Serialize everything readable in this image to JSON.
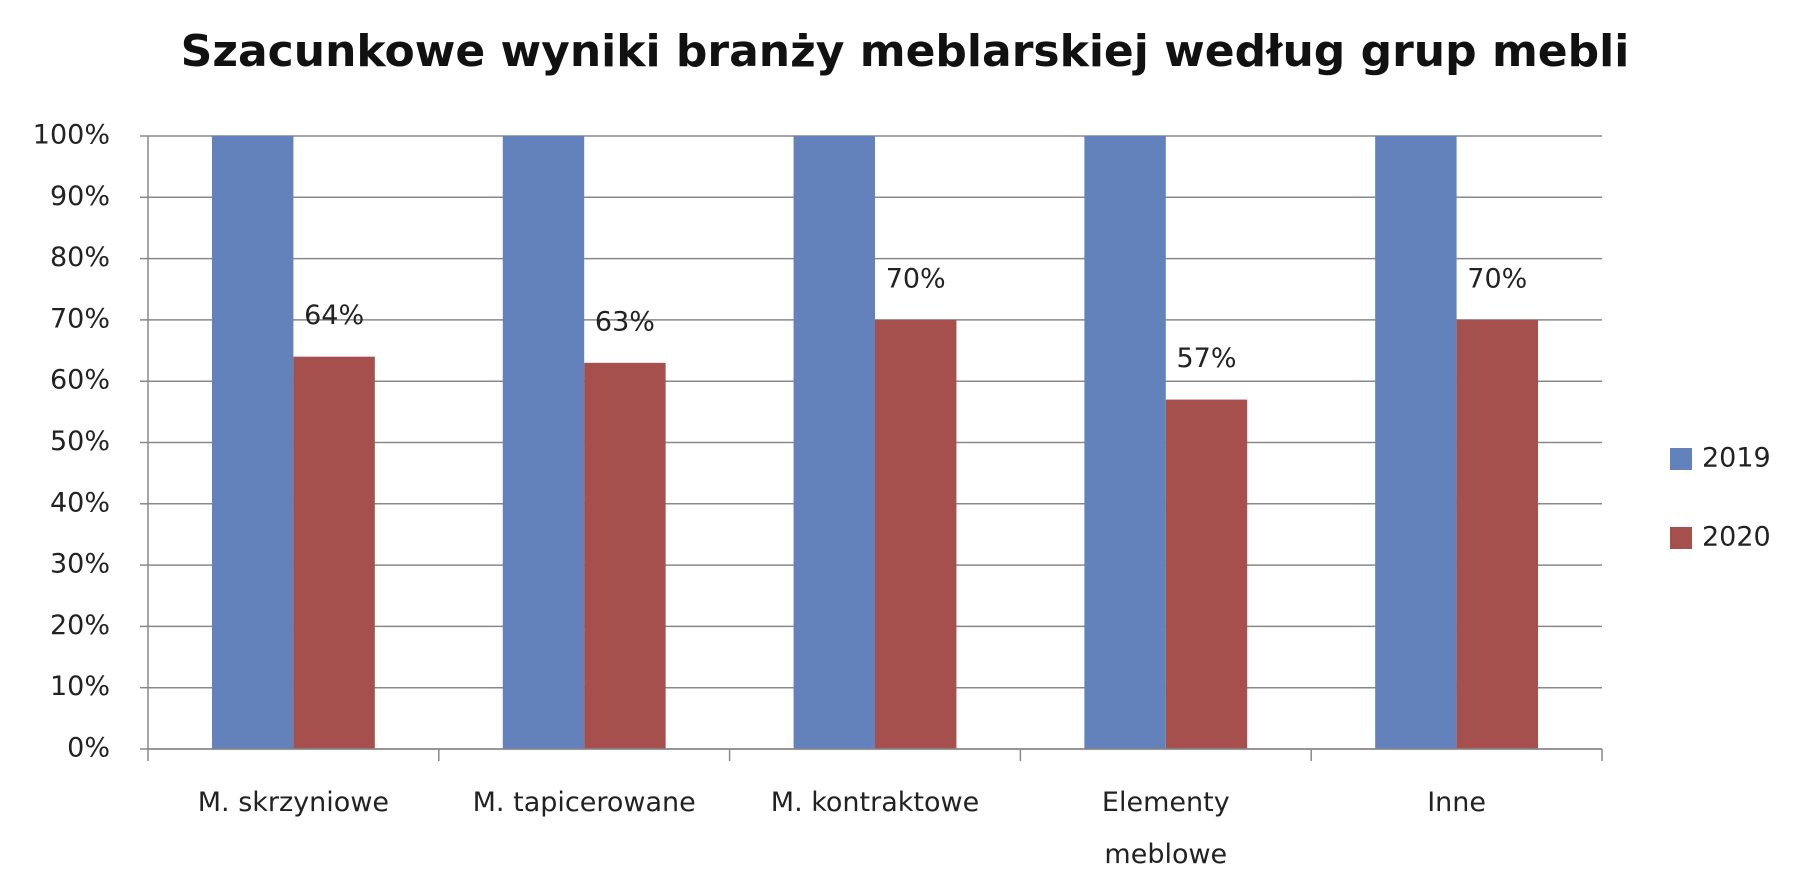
{
  "chart_data": {
    "type": "bar",
    "title": "Szacunkowe wyniki branży meblarskiej według grup mebli",
    "categories": [
      "M. skrzyniowe",
      "M. tapicerowane",
      "M. kontraktowe",
      "Elementy meblowe",
      "Inne"
    ],
    "series": [
      {
        "name": "2019",
        "color": "#6381bb",
        "values": [
          100,
          100,
          100,
          100,
          100
        ]
      },
      {
        "name": "2020",
        "color": "#a6504e",
        "values": [
          64,
          63,
          70,
          57,
          70
        ],
        "value_labels": [
          "64%",
          "63%",
          "70%",
          "57%",
          "70%"
        ]
      }
    ],
    "ylim": [
      0,
      100
    ],
    "yticks": [
      {
        "value": 0,
        "label": "0%"
      },
      {
        "value": 10,
        "label": "10%"
      },
      {
        "value": 20,
        "label": "20%"
      },
      {
        "value": 30,
        "label": "30%"
      },
      {
        "value": 40,
        "label": "40%"
      },
      {
        "value": 50,
        "label": "50%"
      },
      {
        "value": 60,
        "label": "60%"
      },
      {
        "value": 70,
        "label": "70%"
      },
      {
        "value": 80,
        "label": "80%"
      },
      {
        "value": 90,
        "label": "90%"
      },
      {
        "value": 100,
        "label": "100%"
      }
    ],
    "grid": true,
    "legend": "right"
  }
}
